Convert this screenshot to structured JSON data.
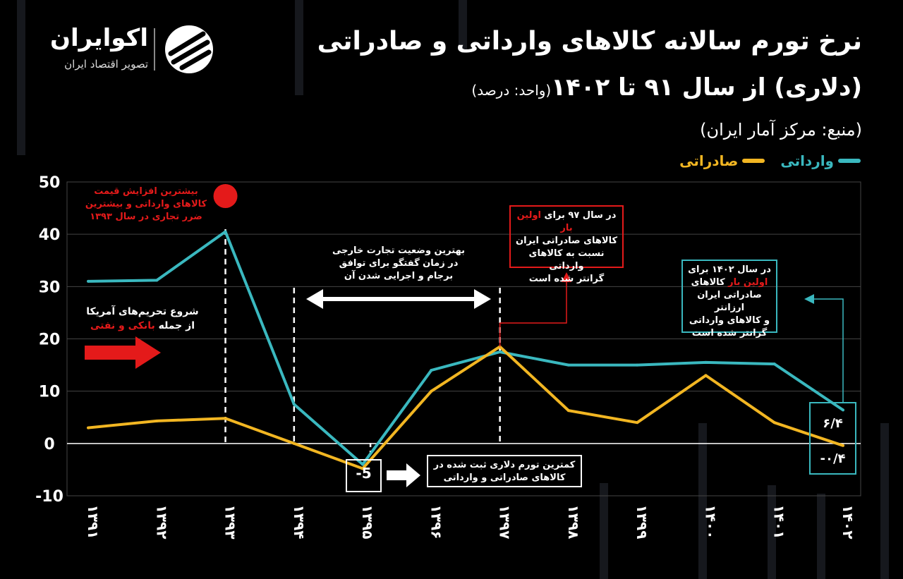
{
  "brand": {
    "name": "اکوایران",
    "tagline": "تصویر اقتصاد ایران"
  },
  "title": {
    "line1": "نرخ تورم سالانه کالاهای وارداتی و صادراتی",
    "line2": "(دلاری) از سال ۹۱ تا ۱۴۰۲",
    "unit": "(واحد: درصد)",
    "source": "(منبع: مرکز آمار ایران)"
  },
  "colors": {
    "imports": "#3ab8bf",
    "exports": "#f2b622",
    "accent_red": "#e41a1a",
    "grid": "#444444"
  },
  "annotations": {
    "peak": {
      "line1": "بیشترین افزایش قیمت",
      "line2": "کالاهای وارداتی و بیشترین",
      "line3": "ضرر تجاری در سال ۱۳۹۳"
    },
    "sanctions": {
      "line1": "شروع تحریم‌های آمریکا",
      "line2_prefix": "از جمله ",
      "line2_highlight": "بانکی و نفتی"
    },
    "jcpoa": {
      "line1": "بهترین وضعیت تجارت خارجی",
      "line2": "در زمان گفتگو برای توافق",
      "line3": "برجام و اجرایی شدن آن"
    },
    "y97": {
      "l1_prefix": "در سال ۹۷ برای ",
      "l1_highlight": "اولین بار",
      "line2": "کالاهای صادراتی ایران",
      "line3": "نسبت به کالاهای وارداتی",
      "line4": "گرانتر شده است"
    },
    "y1402": {
      "line1": "در سال ۱۴۰۲ برای",
      "l2_highlight": "اولین بار",
      "l2_suffix": " کالاهای",
      "line3": "صادراتی ایران ارزانتر",
      "line4": "و کالاهای وارداتی",
      "line5": "گرانتر شده است"
    },
    "lowest": {
      "line1": "کمترین تورم دلاری ثبت شده در",
      "line2": "کالاهای صادراتی و وارداتی",
      "value_label": "-5"
    },
    "end_values": {
      "imports": "۶/۴",
      "exports": "-۰/۴"
    }
  },
  "chart_data": {
    "type": "line",
    "categories": [
      "۱۳۹۱",
      "۱۳۹۲",
      "۱۳۹۳",
      "۱۳۹۴",
      "۱۳۹۵",
      "۱۳۹۶",
      "۱۳۹۷",
      "۱۳۹۸",
      "۱۳۹۹",
      "۱۴۰۰",
      "۱۴۰۱",
      "۱۴۰۲"
    ],
    "series": [
      {
        "name": "وارداتی",
        "values": [
          31,
          31.2,
          40.5,
          7.5,
          -4,
          14,
          17.5,
          15,
          15,
          15.5,
          15.2,
          6.4
        ]
      },
      {
        "name": "صادراتی",
        "values": [
          3,
          4.3,
          4.8,
          0,
          -4.8,
          10,
          18.5,
          6.3,
          4,
          13,
          4,
          -0.4
        ]
      }
    ],
    "yticks": [
      "50",
      "40",
      "30",
      "20",
      "10",
      "0",
      "-10"
    ],
    "ylim": [
      -10,
      50
    ],
    "grid": true,
    "legend": "top-right"
  }
}
